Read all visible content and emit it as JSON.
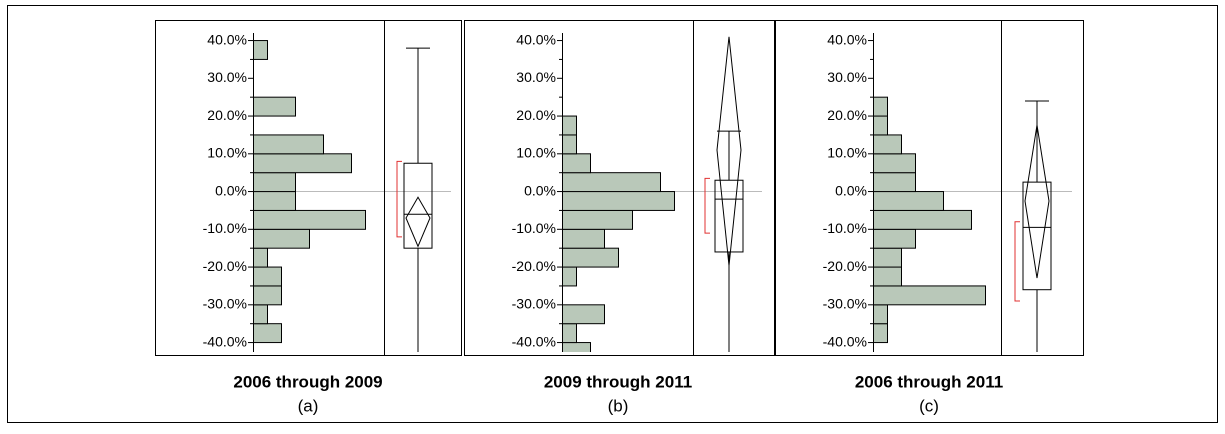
{
  "chart_data": [
    {
      "type": "histogram",
      "title": "2006 through 2009",
      "subtitle": "(a)",
      "color": "#b9c8b9",
      "bins": [
        -40,
        -35,
        -30,
        -25,
        -20,
        -15,
        -10,
        -5,
        0,
        5,
        10,
        15,
        20,
        25,
        30,
        35,
        40
      ],
      "counts": [
        2,
        1,
        2,
        2,
        1,
        4,
        8,
        3,
        3,
        7,
        5,
        0,
        3,
        0,
        0,
        1
      ],
      "ylim": [
        -42.5,
        42
      ],
      "yticks": [
        {
          "value": -40,
          "label": "-40.0%"
        },
        {
          "value": -30,
          "label": "-30.0%"
        },
        {
          "value": -20,
          "label": "-20.0%"
        },
        {
          "value": -10,
          "label": "-10.0%"
        },
        {
          "value": 0,
          "label": "0.0%"
        },
        {
          "value": 10,
          "label": "10.0%"
        },
        {
          "value": 20,
          "label": "20.0%"
        },
        {
          "value": 30,
          "label": "30.0%"
        },
        {
          "value": 40,
          "label": "40.0%"
        }
      ],
      "reference_line": 0,
      "box": {
        "whisker_low": -42.5,
        "q1": -15,
        "median": -6,
        "q3": 7.5,
        "whisker_high": 38,
        "mean": -7,
        "mean_ci_low": -14.5,
        "mean_ci_high": -1.5,
        "shortest_half_low": -12,
        "shortest_half_high": 8
      }
    },
    {
      "type": "histogram",
      "title": "2009 through 2011",
      "subtitle": "(b)",
      "color": "#b9c8b9",
      "bins": [
        -45,
        -40,
        -35,
        -30,
        -25,
        -20,
        -15,
        -10,
        -5,
        0,
        5,
        10,
        15,
        20
      ],
      "counts": [
        2,
        1,
        3,
        0,
        1,
        4,
        3,
        5,
        8,
        7,
        2,
        1,
        1
      ],
      "ylim": [
        -42.5,
        42
      ],
      "yticks": [
        {
          "value": -40,
          "label": "-40.0%"
        },
        {
          "value": -30,
          "label": "-30.0%"
        },
        {
          "value": -20,
          "label": "-20.0%"
        },
        {
          "value": -10,
          "label": "-10.0%"
        },
        {
          "value": 0,
          "label": "0.0%"
        },
        {
          "value": 10,
          "label": "10.0%"
        },
        {
          "value": 20,
          "label": "20.0%"
        },
        {
          "value": 30,
          "label": "30.0%"
        },
        {
          "value": 40,
          "label": "40.0%"
        }
      ],
      "reference_line": 0,
      "box": {
        "whisker_low": -42.5,
        "q1": -16,
        "median": -2,
        "q3": 3,
        "whisker_high": 16,
        "mean": 11,
        "mean_ci_low": -19.6,
        "mean_ci_high": 41,
        "shortest_half_low": -11,
        "shortest_half_high": 3.5
      }
    },
    {
      "type": "histogram",
      "title": "2006 through 2011",
      "subtitle": "(c)",
      "color": "#b9c8b9",
      "bins": [
        -40,
        -35,
        -30,
        -25,
        -20,
        -15,
        -10,
        -5,
        0,
        5,
        10,
        15,
        20,
        25
      ],
      "counts": [
        1,
        1,
        8,
        2,
        2,
        3,
        7,
        5,
        3,
        3,
        2,
        1,
        1
      ],
      "ylim": [
        -42.5,
        42
      ],
      "yticks": [
        {
          "value": -40,
          "label": "-40.0%"
        },
        {
          "value": -30,
          "label": "-30.0%"
        },
        {
          "value": -20,
          "label": "-20.0%"
        },
        {
          "value": -10,
          "label": "-10.0%"
        },
        {
          "value": 0,
          "label": "0.0%"
        },
        {
          "value": 10,
          "label": "10.0%"
        },
        {
          "value": 20,
          "label": "20.0%"
        },
        {
          "value": 30,
          "label": "30.0%"
        },
        {
          "value": 40,
          "label": "40.0%"
        }
      ],
      "reference_line": 0,
      "box": {
        "whisker_low": -42.5,
        "q1": -26,
        "median": -9.5,
        "q3": 2.5,
        "whisker_high": 24,
        "mean": -2.5,
        "mean_ci_low": -22.9,
        "mean_ci_high": 17.6,
        "shortest_half_low": -29,
        "shortest_half_high": -8
      }
    }
  ]
}
